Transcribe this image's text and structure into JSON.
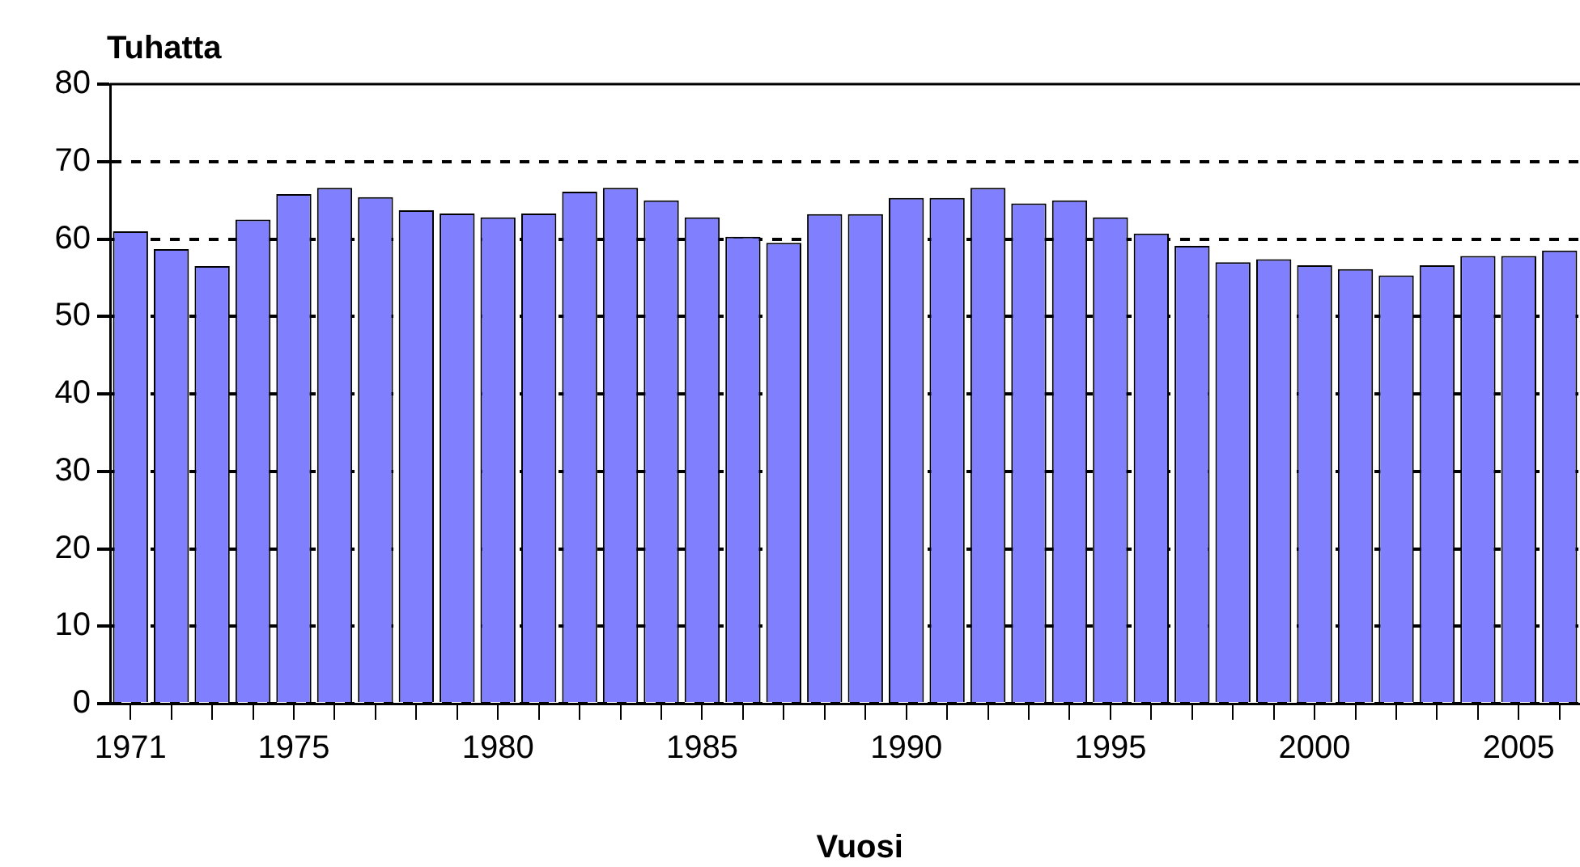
{
  "chart_data": {
    "type": "bar",
    "ylabel": "Tuhatta",
    "xlabel": "Vuosi",
    "categories": [
      "1971",
      null,
      null,
      null,
      "1975",
      null,
      null,
      null,
      null,
      "1980",
      null,
      null,
      null,
      null,
      "1985",
      null,
      null,
      null,
      null,
      "1990",
      null,
      null,
      null,
      null,
      "1995",
      null,
      null,
      null,
      null,
      "2000",
      null,
      null,
      null,
      null,
      "2005",
      null
    ],
    "values": [
      61,
      58.7,
      56.5,
      62.5,
      65.8,
      66.6,
      65.4,
      63.7,
      63.3,
      62.8,
      63.3,
      66.1,
      66.6,
      65,
      62.8,
      60.3,
      59.5,
      63.2,
      63.2,
      65.3,
      65.3,
      66.6,
      64.6,
      65,
      62.8,
      60.7,
      59.1,
      57,
      57.4,
      56.6,
      56.1,
      55.3,
      56.6,
      57.8,
      57.8,
      58.5
    ],
    "color": "#8080ff",
    "ylim": [
      0,
      80
    ],
    "yticks": [
      0,
      10,
      20,
      30,
      40,
      50,
      60,
      70,
      80
    ],
    "grid": "y",
    "legend": false
  }
}
